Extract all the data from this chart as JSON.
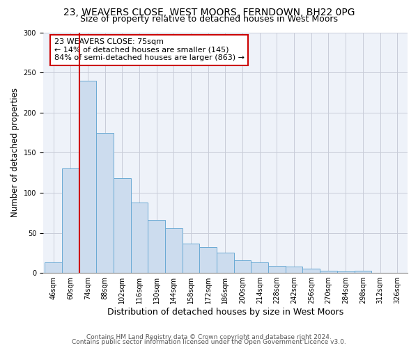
{
  "title": "23, WEAVERS CLOSE, WEST MOORS, FERNDOWN, BH22 0PG",
  "subtitle": "Size of property relative to detached houses in West Moors",
  "xlabel": "Distribution of detached houses by size in West Moors",
  "ylabel": "Number of detached properties",
  "bar_values": [
    13,
    130,
    240,
    175,
    118,
    88,
    66,
    56,
    37,
    32,
    25,
    16,
    13,
    9,
    8,
    5,
    3,
    2,
    3,
    0,
    0
  ],
  "categories": [
    "46sqm",
    "60sqm",
    "74sqm",
    "88sqm",
    "102sqm",
    "116sqm",
    "130sqm",
    "144sqm",
    "158sqm",
    "172sqm",
    "186sqm",
    "200sqm",
    "214sqm",
    "228sqm",
    "242sqm",
    "256sqm",
    "270sqm",
    "284sqm",
    "298sqm",
    "312sqm",
    "326sqm"
  ],
  "bar_color": "#ccdcee",
  "bar_edge_color": "#6aaad4",
  "vline_x_idx": 2,
  "vline_color": "#cc0000",
  "annotation_text": "23 WEAVERS CLOSE: 75sqm\n← 14% of detached houses are smaller (145)\n84% of semi-detached houses are larger (863) →",
  "annotation_box_color": "#ffffff",
  "annotation_box_edge": "#cc0000",
  "ylim": [
    0,
    300
  ],
  "yticks": [
    0,
    50,
    100,
    150,
    200,
    250,
    300
  ],
  "footer1": "Contains HM Land Registry data © Crown copyright and database right 2024.",
  "footer2": "Contains public sector information licensed under the Open Government Licence v3.0.",
  "bg_color": "#eef2f9",
  "grid_color": "#c8ccd8",
  "title_fontsize": 10,
  "subtitle_fontsize": 9,
  "xlabel_fontsize": 9,
  "ylabel_fontsize": 8.5,
  "tick_fontsize": 7,
  "annotation_fontsize": 8,
  "footer_fontsize": 6.5
}
